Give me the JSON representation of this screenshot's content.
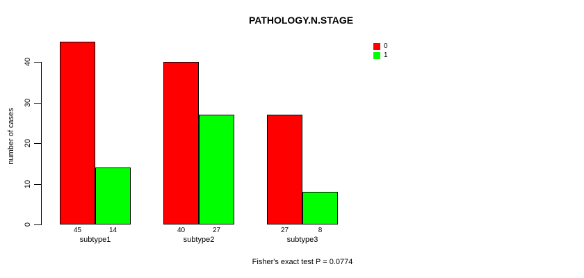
{
  "title": "PATHOLOGY.N.STAGE",
  "ylabel": "number of cases",
  "footer": "Fisher's exact test P = 0.0774",
  "legend": {
    "items": [
      {
        "label": "0",
        "color": "#FF0000"
      },
      {
        "label": "1",
        "color": "#00FF00"
      }
    ]
  },
  "chart_data": {
    "type": "bar",
    "title": "PATHOLOGY.N.STAGE",
    "xlabel": "",
    "ylabel": "number of cases",
    "categories": [
      "subtype1",
      "subtype2",
      "subtype3"
    ],
    "series": [
      {
        "name": "0",
        "color": "#FF0000",
        "values": [
          45,
          40,
          27
        ]
      },
      {
        "name": "1",
        "color": "#00FF00",
        "values": [
          14,
          27,
          8
        ]
      }
    ],
    "bar_value_labels": [
      [
        45,
        40,
        27
      ],
      [
        14,
        27,
        8
      ]
    ],
    "yticks": [
      0,
      10,
      20,
      30,
      40
    ],
    "ylim": [
      0,
      45
    ],
    "grid": false,
    "legend_position": "top-right",
    "annotation": "Fisher's exact test P = 0.0774"
  }
}
